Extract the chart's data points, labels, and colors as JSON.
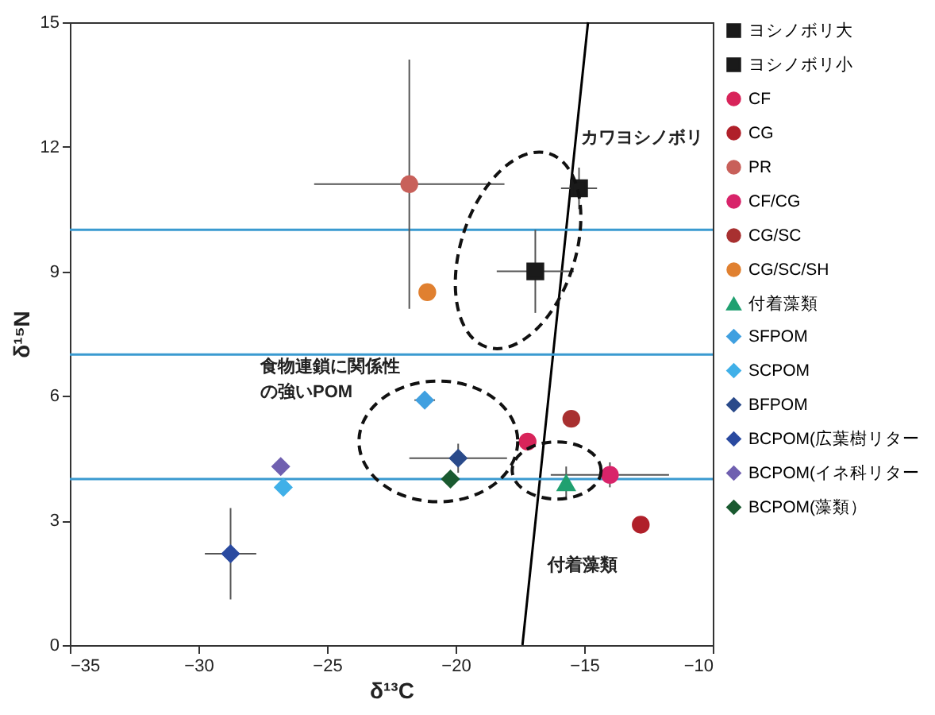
{
  "chart_data": {
    "type": "scatter",
    "xlabel": "δ¹³C",
    "ylabel": "δ¹⁵N",
    "xlim": [
      -35,
      -10
    ],
    "xticks": [
      -35,
      -30,
      -25,
      -20,
      -15,
      -10
    ],
    "ylim": [
      0,
      15
    ],
    "yticks": [
      0,
      3,
      6,
      9,
      12,
      15
    ],
    "grid": false,
    "legend": "right",
    "series": [
      {
        "name": "ヨシノボリ大",
        "color": "#1a1a1a",
        "marker": "square",
        "x": [
          -15.2
        ],
        "values": [
          11.0
        ],
        "errors": [
          0.5
        ],
        "xerrors": [
          0.7
        ]
      },
      {
        "name": "ヨシノボリ小",
        "color": "#1a1a1a",
        "marker": "square",
        "x": [
          -16.9
        ],
        "values": [
          9.0
        ],
        "errors": [
          1.0
        ],
        "xerrors": [
          1.5
        ]
      },
      {
        "name": "CF",
        "color": "#d8245a",
        "marker": "circle",
        "x": [
          -17.2
        ],
        "values": [
          4.9
        ]
      },
      {
        "name": "CG",
        "color": "#b0202a",
        "marker": "circle",
        "x": [
          -12.8
        ],
        "values": [
          2.9
        ]
      },
      {
        "name": "PR",
        "color": "#c8605a",
        "marker": "circle",
        "x": [
          -21.8
        ],
        "values": [
          11.1
        ],
        "errors": [
          3.0
        ],
        "xerrors": [
          3.7
        ]
      },
      {
        "name": "CF/CG",
        "color": "#d8246a",
        "marker": "circle",
        "x": [
          -14.0
        ],
        "values": [
          4.1
        ],
        "errors": [
          0.3
        ],
        "xerrors": [
          2.3
        ]
      },
      {
        "name": "CG/SC",
        "color": "#a83030",
        "marker": "circle",
        "x": [
          -15.5
        ],
        "values": [
          5.45
        ]
      },
      {
        "name": "CG/SC/SH",
        "color": "#e08030",
        "marker": "circle",
        "x": [
          -21.1
        ],
        "values": [
          8.5
        ]
      },
      {
        "name": "付着藻類",
        "color": "#20a070",
        "marker": "triangle",
        "x": [
          -15.7
        ],
        "values": [
          3.9
        ],
        "errors": [
          0.4
        ]
      },
      {
        "name": "SFPOM",
        "color": "#40a0e0",
        "marker": "diamond",
        "x": [
          -21.2
        ],
        "values": [
          5.9
        ],
        "xerrors": [
          0.4
        ]
      },
      {
        "name": "SCPOM",
        "color": "#40b0e8",
        "marker": "diamond",
        "x": [
          -26.7
        ],
        "values": [
          3.8
        ]
      },
      {
        "name": "BFPOM",
        "color": "#2a4a8a",
        "marker": "diamond",
        "x": [
          -19.9
        ],
        "values": [
          4.5
        ],
        "errors": [
          0.35
        ],
        "xerrors": [
          1.9
        ]
      },
      {
        "name": "BCPOM(広葉樹リター",
        "color": "#2a4aa0",
        "marker": "diamond",
        "x": [
          -28.75
        ],
        "values": [
          2.2
        ],
        "errors": [
          1.1
        ],
        "xerrors": [
          1.0
        ]
      },
      {
        "name": "BCPOM(イネ科リター",
        "color": "#7060b0",
        "marker": "diamond",
        "x": [
          -26.8
        ],
        "values": [
          4.3
        ]
      },
      {
        "name": "BCPOM(藻類）",
        "color": "#1a5a30",
        "marker": "diamond",
        "x": [
          -20.2
        ],
        "values": [
          4.0
        ]
      },
      {
        "type": "line",
        "color": "#000000",
        "x": [
          -17.4,
          -14.85
        ],
        "values": [
          0,
          15
        ]
      }
    ],
    "ref_lines": [
      {
        "axis": "y",
        "value": 10,
        "color": "#3a9ad0"
      },
      {
        "axis": "y",
        "value": 7,
        "color": "#3a9ad0"
      },
      {
        "axis": "y",
        "value": 4,
        "color": "#3a9ad0"
      }
    ],
    "annotations": [
      "カワヨシノボリ",
      "食物連鎖に関係性の強いPOM",
      "付着藻類"
    ]
  }
}
